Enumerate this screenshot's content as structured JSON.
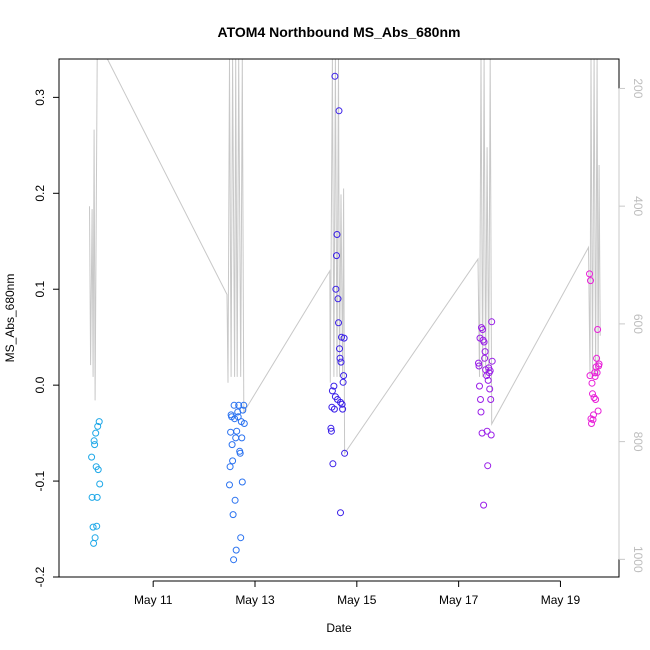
{
  "chart_data": {
    "type": "scatter",
    "title": "ATOM4 Northbound MS_Abs_680nm",
    "xlabel": "Date",
    "ylabel": "MS_Abs_680nm",
    "xlim": [
      9.15,
      20.15
    ],
    "ylim": [
      -0.2,
      0.34
    ],
    "x_ticks": [
      {
        "value": 11,
        "label": "May 11"
      },
      {
        "value": 13,
        "label": "May 13"
      },
      {
        "value": 15,
        "label": "May 15"
      },
      {
        "value": 17,
        "label": "May 17"
      },
      {
        "value": 19,
        "label": "May 19"
      }
    ],
    "y_ticks": [
      -0.2,
      -0.1,
      0.0,
      0.1,
      0.2,
      0.3
    ],
    "y2": {
      "label": "",
      "lim": [
        1030,
        150
      ],
      "ticks": [
        200,
        400,
        600,
        800,
        1000
      ],
      "color": "#c8c8c8"
    },
    "points": [
      {
        "x": 9.79,
        "y": -0.075,
        "color": "#1EA8E8"
      },
      {
        "x": 9.8,
        "y": -0.117,
        "color": "#1EA8E8"
      },
      {
        "x": 9.82,
        "y": -0.148,
        "color": "#1EA8E8"
      },
      {
        "x": 9.83,
        "y": -0.165,
        "color": "#1EA8E8"
      },
      {
        "x": 9.84,
        "y": -0.058,
        "color": "#1EA8E8"
      },
      {
        "x": 9.85,
        "y": -0.062,
        "color": "#1EA8E8"
      },
      {
        "x": 9.86,
        "y": -0.159,
        "color": "#1EA8E8"
      },
      {
        "x": 9.87,
        "y": -0.05,
        "color": "#1EA8E8"
      },
      {
        "x": 9.88,
        "y": -0.085,
        "color": "#1EA8E8"
      },
      {
        "x": 9.89,
        "y": -0.147,
        "color": "#1EA8E8"
      },
      {
        "x": 9.9,
        "y": -0.117,
        "color": "#1EA8E8"
      },
      {
        "x": 9.91,
        "y": -0.043,
        "color": "#1EA8E8"
      },
      {
        "x": 9.92,
        "y": -0.088,
        "color": "#1EA8E8"
      },
      {
        "x": 9.94,
        "y": -0.038,
        "color": "#1EA8E8"
      },
      {
        "x": 9.95,
        "y": -0.103,
        "color": "#1EA8E8"
      },
      {
        "x": 12.5,
        "y": -0.104,
        "color": "#2A72F0"
      },
      {
        "x": 12.51,
        "y": -0.085,
        "color": "#2A72F0"
      },
      {
        "x": 12.52,
        "y": -0.049,
        "color": "#2A72F0"
      },
      {
        "x": 12.53,
        "y": -0.031,
        "color": "#2A72F0"
      },
      {
        "x": 12.54,
        "y": -0.033,
        "color": "#2A72F0"
      },
      {
        "x": 12.55,
        "y": -0.062,
        "color": "#2A72F0"
      },
      {
        "x": 12.56,
        "y": -0.079,
        "color": "#2A72F0"
      },
      {
        "x": 12.57,
        "y": -0.135,
        "color": "#2A72F0"
      },
      {
        "x": 12.58,
        "y": -0.182,
        "color": "#2A72F0"
      },
      {
        "x": 12.59,
        "y": -0.021,
        "color": "#2A72F0"
      },
      {
        "x": 12.6,
        "y": -0.035,
        "color": "#2A72F0"
      },
      {
        "x": 12.61,
        "y": -0.12,
        "color": "#2A72F0"
      },
      {
        "x": 12.62,
        "y": -0.055,
        "color": "#2A72F0"
      },
      {
        "x": 12.63,
        "y": -0.172,
        "color": "#2A72F0"
      },
      {
        "x": 12.64,
        "y": -0.048,
        "color": "#2A72F0"
      },
      {
        "x": 12.66,
        "y": -0.028,
        "color": "#2A72F0"
      },
      {
        "x": 12.67,
        "y": -0.033,
        "color": "#2A72F0"
      },
      {
        "x": 12.68,
        "y": -0.021,
        "color": "#2A72F0"
      },
      {
        "x": 12.7,
        "y": -0.069,
        "color": "#2A72F0"
      },
      {
        "x": 12.71,
        "y": -0.071,
        "color": "#2A72F0"
      },
      {
        "x": 12.72,
        "y": -0.159,
        "color": "#2A72F0"
      },
      {
        "x": 12.73,
        "y": -0.038,
        "color": "#2A72F0"
      },
      {
        "x": 12.74,
        "y": -0.055,
        "color": "#2A72F0"
      },
      {
        "x": 12.75,
        "y": -0.101,
        "color": "#2A72F0"
      },
      {
        "x": 12.76,
        "y": -0.026,
        "color": "#2A72F0"
      },
      {
        "x": 12.78,
        "y": -0.021,
        "color": "#2A72F0"
      },
      {
        "x": 12.79,
        "y": -0.04,
        "color": "#2A72F0"
      },
      {
        "x": 14.49,
        "y": -0.045,
        "color": "#3A1FE8"
      },
      {
        "x": 14.5,
        "y": -0.048,
        "color": "#3A1FE8"
      },
      {
        "x": 14.51,
        "y": -0.023,
        "color": "#3A1FE8"
      },
      {
        "x": 14.52,
        "y": -0.006,
        "color": "#3A1FE8"
      },
      {
        "x": 14.53,
        "y": -0.082,
        "color": "#3A1FE8"
      },
      {
        "x": 14.55,
        "y": -0.001,
        "color": "#3A1FE8"
      },
      {
        "x": 14.56,
        "y": -0.025,
        "color": "#3A1FE8"
      },
      {
        "x": 14.57,
        "y": 0.322,
        "color": "#3A1FE8"
      },
      {
        "x": 14.58,
        "y": -0.012,
        "color": "#3A1FE8"
      },
      {
        "x": 14.59,
        "y": 0.1,
        "color": "#3A1FE8"
      },
      {
        "x": 14.6,
        "y": 0.135,
        "color": "#3A1FE8"
      },
      {
        "x": 14.61,
        "y": 0.157,
        "color": "#3A1FE8"
      },
      {
        "x": 14.62,
        "y": -0.015,
        "color": "#3A1FE8"
      },
      {
        "x": 14.63,
        "y": 0.09,
        "color": "#3A1FE8"
      },
      {
        "x": 14.64,
        "y": 0.065,
        "color": "#3A1FE8"
      },
      {
        "x": 14.65,
        "y": 0.286,
        "color": "#3A1FE8"
      },
      {
        "x": 14.66,
        "y": 0.038,
        "color": "#3A1FE8"
      },
      {
        "x": 14.67,
        "y": 0.028,
        "color": "#3A1FE8"
      },
      {
        "x": 14.68,
        "y": -0.133,
        "color": "#3A1FE8"
      },
      {
        "x": 14.69,
        "y": 0.024,
        "color": "#3A1FE8"
      },
      {
        "x": 14.7,
        "y": 0.05,
        "color": "#3A1FE8"
      },
      {
        "x": 14.71,
        "y": -0.02,
        "color": "#3A1FE8"
      },
      {
        "x": 14.72,
        "y": -0.025,
        "color": "#3A1FE8"
      },
      {
        "x": 14.73,
        "y": 0.003,
        "color": "#3A1FE8"
      },
      {
        "x": 14.74,
        "y": 0.01,
        "color": "#3A1FE8"
      },
      {
        "x": 14.75,
        "y": 0.049,
        "color": "#3A1FE8"
      },
      {
        "x": 14.76,
        "y": -0.071,
        "color": "#3A1FE8"
      },
      {
        "x": 14.68,
        "y": -0.018,
        "color": "#3A1FE8"
      },
      {
        "x": 17.39,
        "y": 0.023,
        "color": "#9A1FE8"
      },
      {
        "x": 17.4,
        "y": 0.02,
        "color": "#9A1FE8"
      },
      {
        "x": 17.41,
        "y": -0.001,
        "color": "#9A1FE8"
      },
      {
        "x": 17.42,
        "y": 0.049,
        "color": "#9A1FE8"
      },
      {
        "x": 17.43,
        "y": -0.015,
        "color": "#9A1FE8"
      },
      {
        "x": 17.44,
        "y": -0.028,
        "color": "#9A1FE8"
      },
      {
        "x": 17.45,
        "y": 0.06,
        "color": "#9A1FE8"
      },
      {
        "x": 17.46,
        "y": -0.05,
        "color": "#9A1FE8"
      },
      {
        "x": 17.47,
        "y": 0.058,
        "color": "#9A1FE8"
      },
      {
        "x": 17.48,
        "y": 0.047,
        "color": "#9A1FE8"
      },
      {
        "x": 17.49,
        "y": -0.125,
        "color": "#9A1FE8"
      },
      {
        "x": 17.5,
        "y": 0.045,
        "color": "#9A1FE8"
      },
      {
        "x": 17.51,
        "y": 0.028,
        "color": "#9A1FE8"
      },
      {
        "x": 17.52,
        "y": 0.035,
        "color": "#9A1FE8"
      },
      {
        "x": 17.53,
        "y": 0.016,
        "color": "#9A1FE8"
      },
      {
        "x": 17.55,
        "y": 0.01,
        "color": "#9A1FE8"
      },
      {
        "x": 17.56,
        "y": -0.048,
        "color": "#9A1FE8"
      },
      {
        "x": 17.57,
        "y": -0.084,
        "color": "#9A1FE8"
      },
      {
        "x": 17.58,
        "y": 0.005,
        "color": "#9A1FE8"
      },
      {
        "x": 17.59,
        "y": 0.018,
        "color": "#9A1FE8"
      },
      {
        "x": 17.6,
        "y": 0.013,
        "color": "#9A1FE8"
      },
      {
        "x": 17.61,
        "y": -0.004,
        "color": "#9A1FE8"
      },
      {
        "x": 17.62,
        "y": 0.015,
        "color": "#9A1FE8"
      },
      {
        "x": 17.63,
        "y": -0.015,
        "color": "#9A1FE8"
      },
      {
        "x": 17.64,
        "y": -0.052,
        "color": "#9A1FE8"
      },
      {
        "x": 17.65,
        "y": 0.066,
        "color": "#9A1FE8"
      },
      {
        "x": 17.66,
        "y": 0.025,
        "color": "#9A1FE8"
      },
      {
        "x": 19.57,
        "y": 0.116,
        "color": "#E81FD8"
      },
      {
        "x": 19.58,
        "y": 0.01,
        "color": "#E81FD8"
      },
      {
        "x": 19.59,
        "y": 0.109,
        "color": "#E81FD8"
      },
      {
        "x": 19.6,
        "y": -0.035,
        "color": "#E81FD8"
      },
      {
        "x": 19.61,
        "y": -0.04,
        "color": "#E81FD8"
      },
      {
        "x": 19.62,
        "y": 0.002,
        "color": "#E81FD8"
      },
      {
        "x": 19.63,
        "y": -0.009,
        "color": "#E81FD8"
      },
      {
        "x": 19.64,
        "y": -0.036,
        "color": "#E81FD8"
      },
      {
        "x": 19.65,
        "y": -0.031,
        "color": "#E81FD8"
      },
      {
        "x": 19.66,
        "y": -0.013,
        "color": "#E81FD8"
      },
      {
        "x": 19.67,
        "y": 0.013,
        "color": "#E81FD8"
      },
      {
        "x": 19.68,
        "y": 0.009,
        "color": "#E81FD8"
      },
      {
        "x": 19.69,
        "y": -0.015,
        "color": "#E81FD8"
      },
      {
        "x": 19.7,
        "y": 0.019,
        "color": "#E81FD8"
      },
      {
        "x": 19.71,
        "y": 0.028,
        "color": "#E81FD8"
      },
      {
        "x": 19.72,
        "y": 0.013,
        "color": "#E81FD8"
      },
      {
        "x": 19.73,
        "y": 0.058,
        "color": "#E81FD8"
      },
      {
        "x": 19.74,
        "y": -0.027,
        "color": "#E81FD8"
      },
      {
        "x": 19.75,
        "y": 0.02,
        "color": "#E81FD8"
      },
      {
        "x": 19.76,
        "y": 0.022,
        "color": "#E81FD8"
      }
    ],
    "depth_trace": {
      "color": "#c8c8c8",
      "points": [
        [
          9.75,
          400
        ],
        [
          9.77,
          670
        ],
        [
          9.8,
          405
        ],
        [
          9.82,
          690
        ],
        [
          9.84,
          270
        ],
        [
          9.86,
          730
        ],
        [
          9.9,
          150
        ],
        [
          10.1,
          150
        ],
        [
          12.45,
          550
        ],
        [
          12.47,
          700
        ],
        [
          12.5,
          150
        ],
        [
          12.53,
          690
        ],
        [
          12.56,
          150
        ],
        [
          12.6,
          690
        ],
        [
          12.62,
          150
        ],
        [
          12.65,
          690
        ],
        [
          12.68,
          150
        ],
        [
          12.72,
          690
        ],
        [
          12.75,
          150
        ],
        [
          12.78,
          750
        ],
        [
          14.47,
          510
        ],
        [
          14.48,
          700
        ],
        [
          14.52,
          150
        ],
        [
          14.55,
          690
        ],
        [
          14.58,
          150
        ],
        [
          14.61,
          690
        ],
        [
          14.64,
          150
        ],
        [
          14.66,
          690
        ],
        [
          14.69,
          380
        ],
        [
          14.72,
          690
        ],
        [
          14.74,
          370
        ],
        [
          14.76,
          820
        ],
        [
          17.38,
          490
        ],
        [
          17.41,
          690
        ],
        [
          17.44,
          150
        ],
        [
          17.47,
          690
        ],
        [
          17.5,
          150
        ],
        [
          17.53,
          690
        ],
        [
          17.56,
          300
        ],
        [
          17.59,
          690
        ],
        [
          17.62,
          150
        ],
        [
          17.65,
          770
        ],
        [
          19.55,
          470
        ],
        [
          19.58,
          690
        ],
        [
          19.6,
          150
        ],
        [
          19.63,
          690
        ],
        [
          19.66,
          150
        ],
        [
          19.69,
          690
        ],
        [
          19.72,
          150
        ],
        [
          19.74,
          690
        ],
        [
          19.76,
          330
        ],
        [
          19.78,
          620
        ]
      ]
    }
  }
}
